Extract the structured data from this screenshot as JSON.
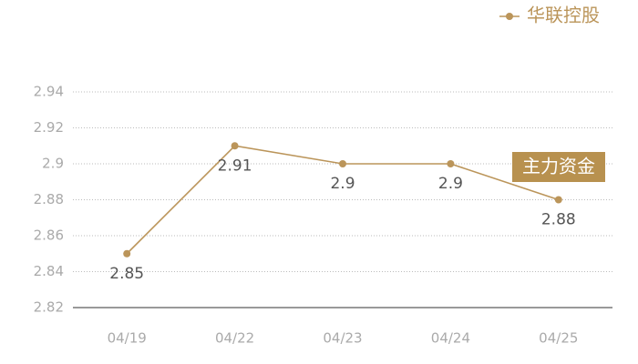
{
  "chart_data": {
    "type": "line",
    "categories": [
      "04/19",
      "04/22",
      "04/23",
      "04/24",
      "04/25"
    ],
    "series": [
      {
        "name": "华联控股",
        "color": "#bb955a",
        "values": [
          2.85,
          2.91,
          2.9,
          2.9,
          2.88
        ]
      }
    ],
    "ylim": [
      2.82,
      2.94
    ],
    "yticks": [
      2.82,
      2.84,
      2.86,
      2.88,
      2.9,
      2.92,
      2.94
    ],
    "grid": true,
    "legend": "top-right",
    "annotation": "主力资金"
  }
}
